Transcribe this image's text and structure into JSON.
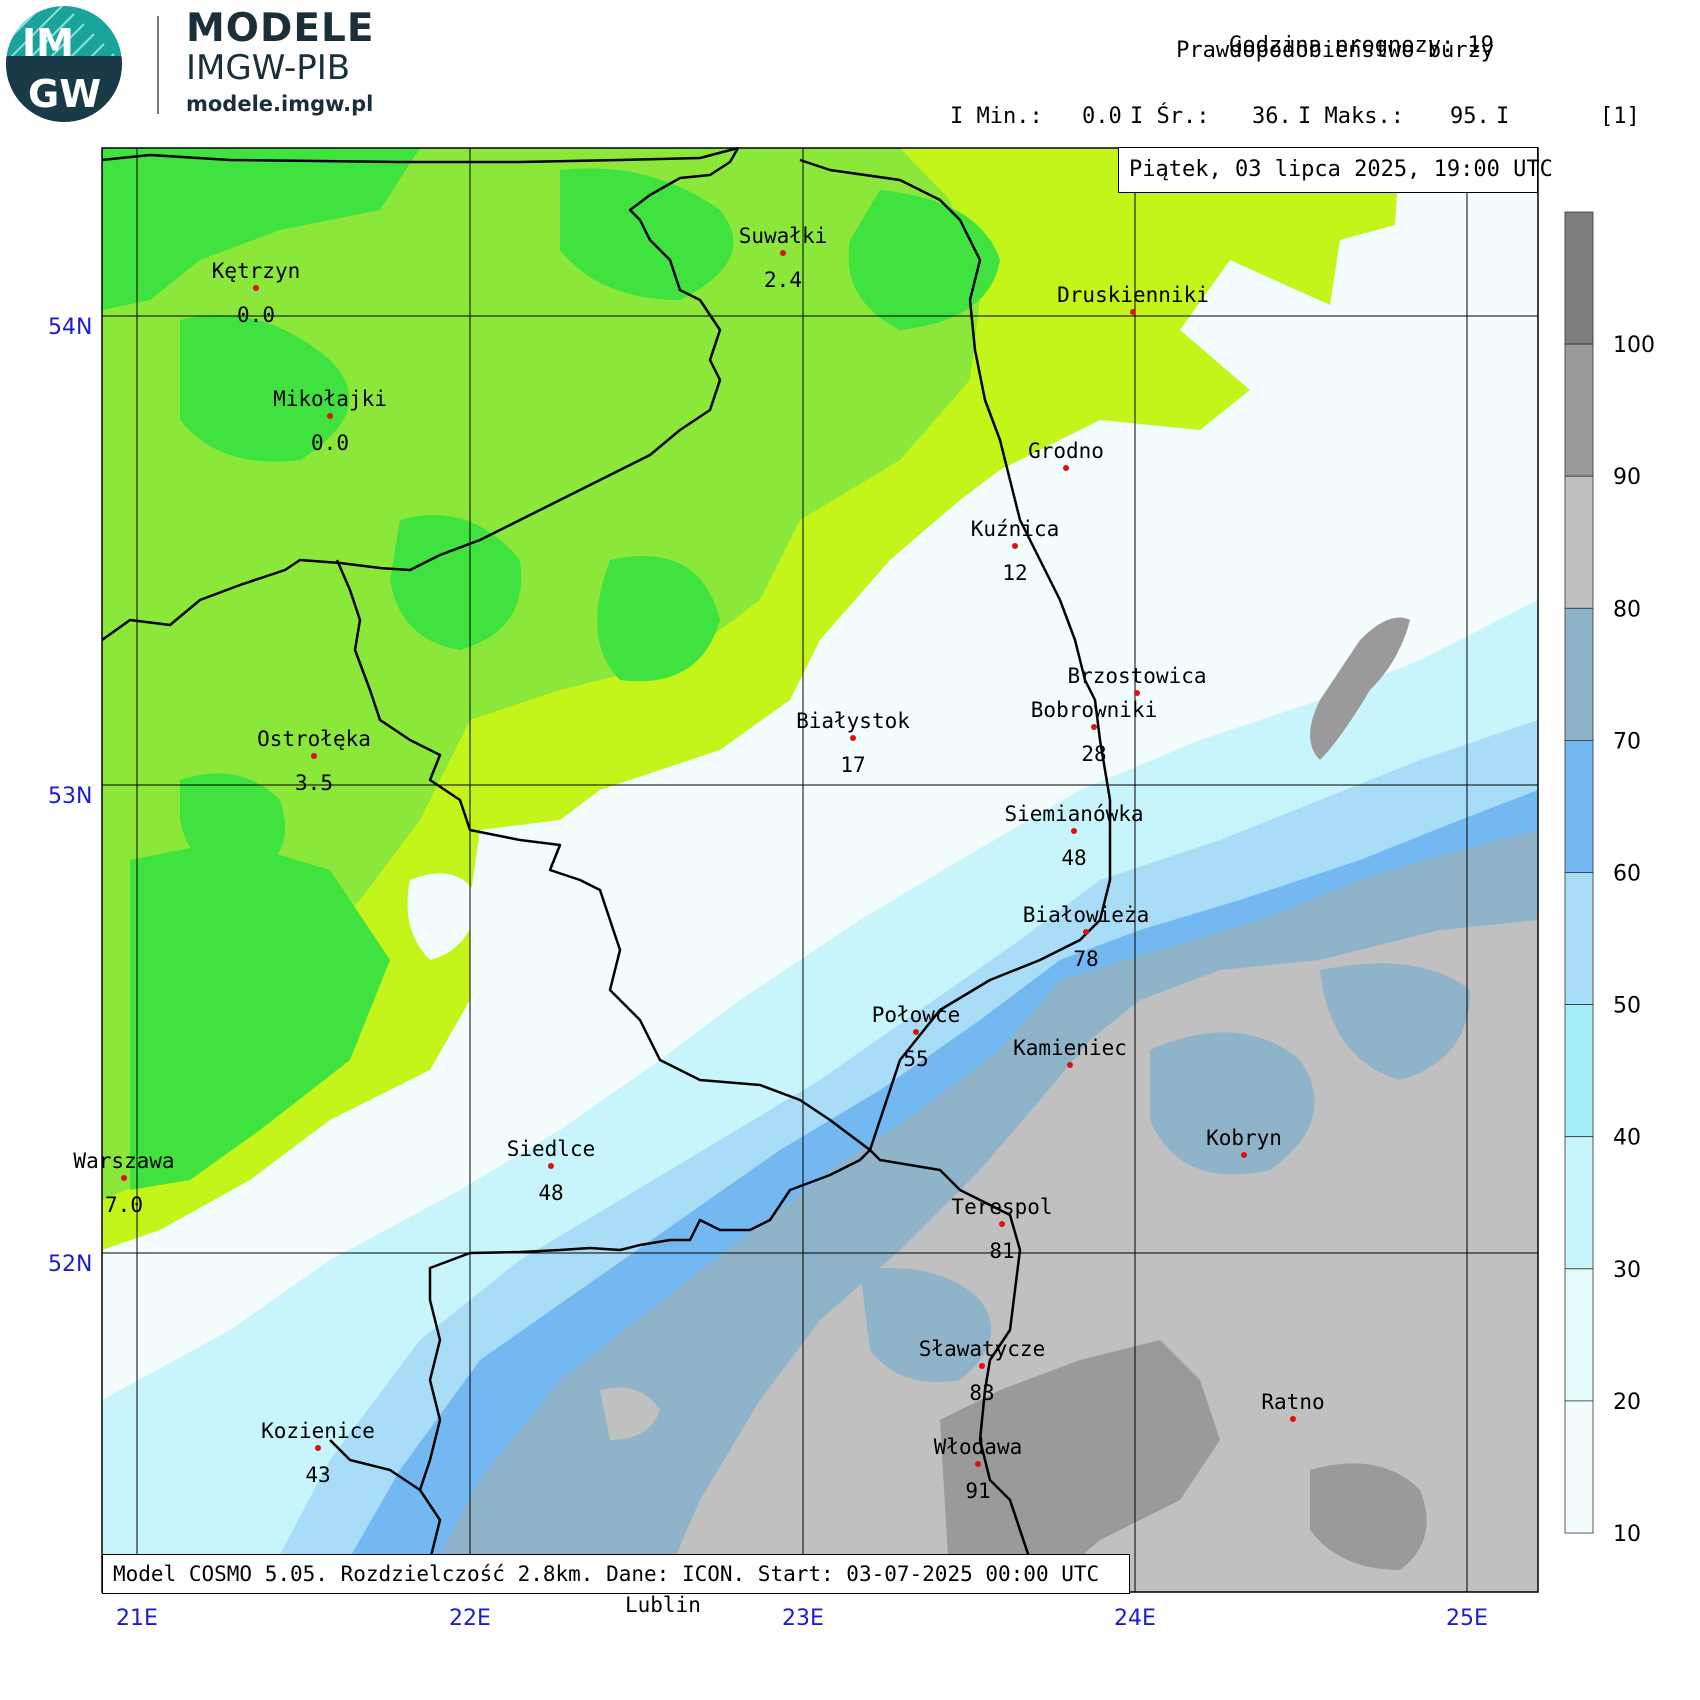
{
  "logo": {
    "badge_top": "IM",
    "badge_bottom": "GW",
    "title": "MODELE",
    "subtitle": "IMGW-PIB",
    "url": "modele.imgw.pl"
  },
  "header": {
    "forecast_hour_label": "Godzina prognozy:",
    "forecast_hour": "19",
    "parameter": "Prawdopodobieństwo burzy",
    "min_label": "I Min.:",
    "min_value": "0.0",
    "avg_label": "I Śr.:",
    "avg_value": "36.",
    "max_label": "I Maks.:",
    "max_value": "95.",
    "sep": "I",
    "unit": "[1]"
  },
  "date_label": "Piątek, 03 lipca 2025, 19:00 UTC",
  "model_info": "Model COSMO 5.05. Rozdzielczość 2.8km. Dane: ICON. Start: 03-07-2025 00:00 UTC",
  "outside_label": "Lublin",
  "axes": {
    "lon_labels": [
      "21E",
      "22E",
      "23E",
      "24E",
      "25E"
    ],
    "lat_labels": [
      "54N",
      "53N",
      "52N"
    ]
  },
  "colors": {
    "c10": "#f3fdfd",
    "c20": "#e4fbfc",
    "c30": "#c8f5fb",
    "c40": "#a4eef8",
    "c50": "#a9dcf7",
    "c60": "#74b8f2",
    "c70": "#8fb4c9",
    "c80": "#c0c0c0",
    "c90": "#9a9a9a",
    "c100": "#7e7e7e",
    "green_dark": "#3fe23f",
    "green_mid": "#8be83a",
    "green_light": "#c4f51a",
    "lime": "#d2f81c"
  },
  "legend": {
    "ticks": [
      "10",
      "20",
      "30",
      "40",
      "50",
      "60",
      "70",
      "80",
      "90",
      "100"
    ],
    "bands": [
      {
        "from": 10,
        "to": 20,
        "color": "#f3fdfd"
      },
      {
        "from": 20,
        "to": 30,
        "color": "#e4fbfc"
      },
      {
        "from": 30,
        "to": 40,
        "color": "#c8f5fb"
      },
      {
        "from": 40,
        "to": 50,
        "color": "#a4eef8"
      },
      {
        "from": 50,
        "to": 60,
        "color": "#a9dcf7"
      },
      {
        "from": 60,
        "to": 70,
        "color": "#74b8f2"
      },
      {
        "from": 70,
        "to": 80,
        "color": "#8fb4c9"
      },
      {
        "from": 80,
        "to": 90,
        "color": "#c0c0c0"
      },
      {
        "from": 90,
        "to": 100,
        "color": "#9a9a9a"
      },
      {
        "from": 100,
        "to": 110,
        "color": "#7e7e7e"
      }
    ]
  },
  "cities": [
    {
      "name": "Kętrzyn",
      "value": "0.0"
    },
    {
      "name": "Suwałki",
      "value": "2.4"
    },
    {
      "name": "Druskienniki",
      "value": ""
    },
    {
      "name": "Mikołajki",
      "value": "0.0"
    },
    {
      "name": "Grodno",
      "value": ""
    },
    {
      "name": "Kuźnica",
      "value": "12"
    },
    {
      "name": "Brzostowica",
      "value": ""
    },
    {
      "name": "Bobrowniki",
      "value": "28"
    },
    {
      "name": "Białystok",
      "value": "17"
    },
    {
      "name": "Ostrołęka",
      "value": "3.5"
    },
    {
      "name": "Siemianówka",
      "value": "48"
    },
    {
      "name": "Białowieża",
      "value": "78"
    },
    {
      "name": "Połowce",
      "value": "55"
    },
    {
      "name": "Kamieniec",
      "value": ""
    },
    {
      "name": "Kobryn",
      "value": ""
    },
    {
      "name": "Warszawa",
      "value": "7.0"
    },
    {
      "name": "Siedlce",
      "value": "48"
    },
    {
      "name": "Terespol",
      "value": "81"
    },
    {
      "name": "Sławatycze",
      "value": "83"
    },
    {
      "name": "Ratno",
      "value": ""
    },
    {
      "name": "Kozienice",
      "value": "43"
    },
    {
      "name": "Włodawa",
      "value": "91"
    }
  ]
}
